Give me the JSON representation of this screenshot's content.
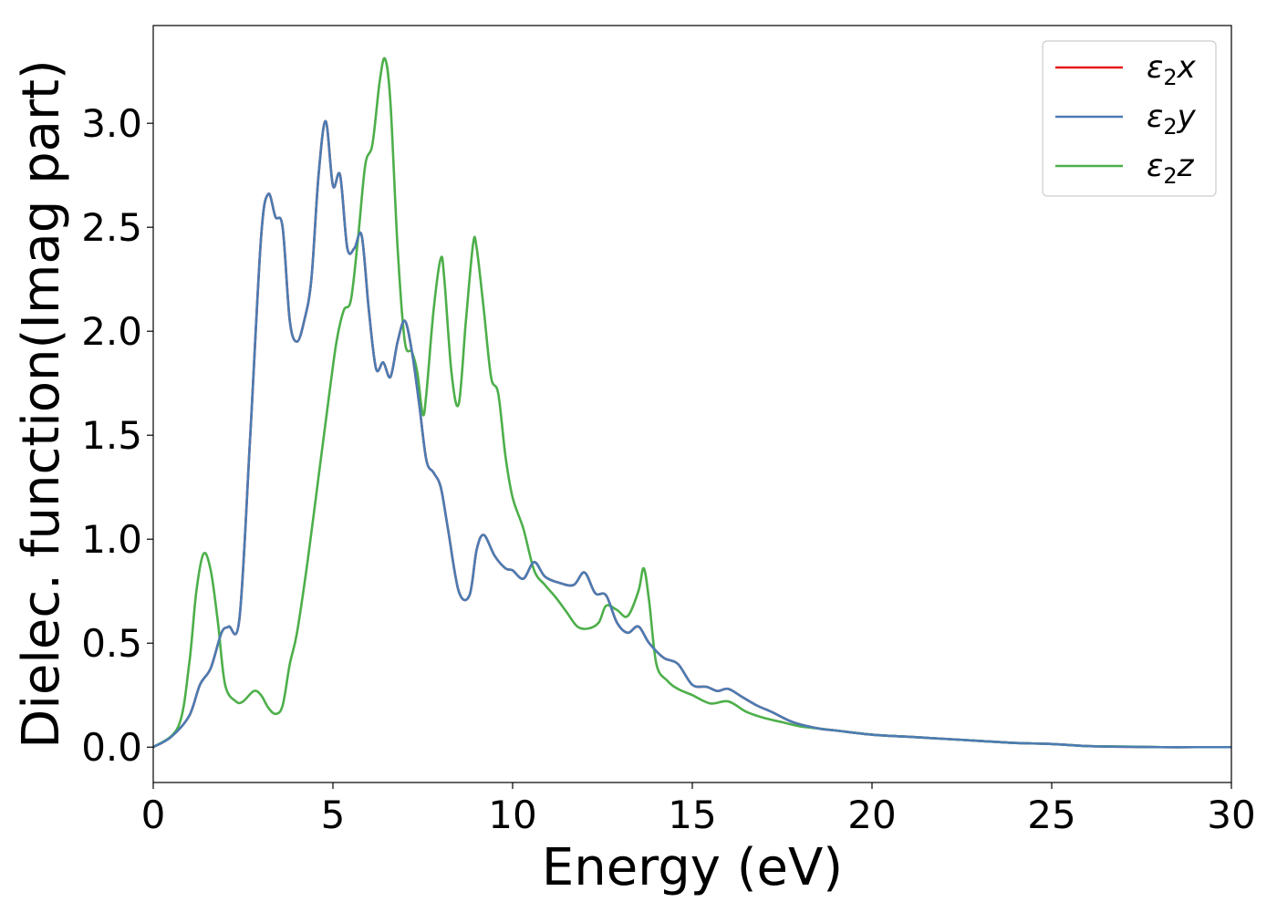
{
  "chart_data": {
    "type": "line",
    "xlabel": "Energy (eV)",
    "ylabel": "Dielec. function(Imag part)",
    "xlim": [
      0,
      30
    ],
    "ylim": [
      -0.17,
      3.47
    ],
    "xticks": [
      0,
      5,
      10,
      15,
      20,
      25,
      30
    ],
    "yticks": [
      0.0,
      0.5,
      1.0,
      1.5,
      2.0,
      2.5,
      3.0
    ],
    "xtick_labels": [
      "0",
      "5",
      "10",
      "15",
      "20",
      "25",
      "30"
    ],
    "ytick_labels": [
      "0.0",
      "0.5",
      "1.0",
      "1.5",
      "2.0",
      "2.5",
      "3.0"
    ],
    "grid": false,
    "legend_position": "top-right",
    "series": [
      {
        "name": "ε₂x",
        "legend_base": "ε",
        "legend_sub": "2",
        "legend_tail": "x",
        "color": "#e41a1c",
        "x": [
          0,
          0.5,
          1.0,
          1.3,
          1.6,
          1.9,
          2.1,
          2.4,
          2.7,
          3.0,
          3.2,
          3.4,
          3.6,
          3.8,
          4.0,
          4.2,
          4.4,
          4.6,
          4.8,
          5.0,
          5.2,
          5.4,
          5.6,
          5.8,
          6.0,
          6.2,
          6.4,
          6.6,
          6.8,
          7.0,
          7.2,
          7.4,
          7.6,
          7.8,
          8.0,
          8.2,
          8.5,
          8.8,
          9.0,
          9.2,
          9.5,
          9.8,
          10.0,
          10.3,
          10.6,
          10.9,
          11.3,
          11.7,
          12.0,
          12.3,
          12.6,
          12.9,
          13.2,
          13.5,
          13.8,
          14.2,
          14.6,
          15.0,
          15.4,
          15.7,
          16.0,
          16.4,
          16.8,
          17.2,
          17.8,
          18.5,
          19.0,
          20.0,
          21.0,
          22.0,
          23.0,
          24.0,
          25.0,
          26.0,
          26.5,
          27.0,
          28.0,
          29.0,
          30.0
        ],
        "y": [
          0.0,
          0.05,
          0.15,
          0.3,
          0.38,
          0.55,
          0.58,
          0.62,
          1.5,
          2.45,
          2.66,
          2.55,
          2.5,
          2.05,
          1.95,
          2.05,
          2.25,
          2.75,
          3.01,
          2.7,
          2.75,
          2.4,
          2.4,
          2.46,
          2.1,
          1.82,
          1.85,
          1.78,
          1.95,
          2.05,
          1.9,
          1.65,
          1.38,
          1.32,
          1.25,
          1.05,
          0.75,
          0.73,
          0.95,
          1.02,
          0.92,
          0.86,
          0.85,
          0.81,
          0.89,
          0.82,
          0.79,
          0.78,
          0.84,
          0.74,
          0.73,
          0.6,
          0.55,
          0.58,
          0.5,
          0.43,
          0.4,
          0.3,
          0.29,
          0.27,
          0.28,
          0.24,
          0.2,
          0.17,
          0.12,
          0.09,
          0.08,
          0.06,
          0.05,
          0.04,
          0.03,
          0.02,
          0.015,
          0.005,
          0.003,
          0.002,
          0.0,
          0.0,
          0.0
        ]
      },
      {
        "name": "ε₂y",
        "legend_base": "ε",
        "legend_sub": "2",
        "legend_tail": "y",
        "color": "#4a7cb3",
        "x": [
          0,
          0.5,
          1.0,
          1.3,
          1.6,
          1.9,
          2.1,
          2.4,
          2.7,
          3.0,
          3.2,
          3.4,
          3.6,
          3.8,
          4.0,
          4.2,
          4.4,
          4.6,
          4.8,
          5.0,
          5.2,
          5.4,
          5.6,
          5.8,
          6.0,
          6.2,
          6.4,
          6.6,
          6.8,
          7.0,
          7.2,
          7.4,
          7.6,
          7.8,
          8.0,
          8.2,
          8.5,
          8.8,
          9.0,
          9.2,
          9.5,
          9.8,
          10.0,
          10.3,
          10.6,
          10.9,
          11.3,
          11.7,
          12.0,
          12.3,
          12.6,
          12.9,
          13.2,
          13.5,
          13.8,
          14.2,
          14.6,
          15.0,
          15.4,
          15.7,
          16.0,
          16.4,
          16.8,
          17.2,
          17.8,
          18.5,
          19.0,
          20.0,
          21.0,
          22.0,
          23.0,
          24.0,
          25.0,
          26.0,
          26.5,
          27.0,
          28.0,
          29.0,
          30.0
        ],
        "y": [
          0.0,
          0.05,
          0.15,
          0.3,
          0.38,
          0.55,
          0.58,
          0.62,
          1.5,
          2.45,
          2.66,
          2.55,
          2.5,
          2.05,
          1.95,
          2.05,
          2.25,
          2.75,
          3.01,
          2.7,
          2.75,
          2.4,
          2.4,
          2.46,
          2.1,
          1.82,
          1.85,
          1.78,
          1.95,
          2.05,
          1.9,
          1.65,
          1.38,
          1.32,
          1.25,
          1.05,
          0.75,
          0.73,
          0.95,
          1.02,
          0.92,
          0.86,
          0.85,
          0.81,
          0.89,
          0.82,
          0.79,
          0.78,
          0.84,
          0.74,
          0.73,
          0.6,
          0.55,
          0.58,
          0.5,
          0.43,
          0.4,
          0.3,
          0.29,
          0.27,
          0.28,
          0.24,
          0.2,
          0.17,
          0.12,
          0.09,
          0.08,
          0.06,
          0.05,
          0.04,
          0.03,
          0.02,
          0.015,
          0.005,
          0.003,
          0.002,
          0.0,
          0.0,
          0.0
        ]
      },
      {
        "name": "ε₂z",
        "legend_base": "ε",
        "legend_sub": "2",
        "legend_tail": "z",
        "color": "#4daf4a",
        "x": [
          0,
          0.7,
          1.0,
          1.2,
          1.4,
          1.6,
          1.8,
          2.0,
          2.3,
          2.5,
          2.8,
          3.0,
          3.2,
          3.4,
          3.6,
          3.8,
          4.0,
          4.3,
          4.6,
          4.9,
          5.1,
          5.3,
          5.5,
          5.7,
          5.9,
          6.1,
          6.3,
          6.45,
          6.6,
          6.8,
          7.0,
          7.2,
          7.35,
          7.5,
          7.6,
          7.8,
          8.0,
          8.1,
          8.3,
          8.5,
          8.7,
          8.9,
          9.0,
          9.2,
          9.4,
          9.6,
          9.8,
          10.0,
          10.3,
          10.6,
          10.9,
          11.2,
          11.5,
          11.8,
          12.1,
          12.4,
          12.6,
          12.9,
          13.2,
          13.5,
          13.65,
          13.8,
          14.0,
          14.3,
          14.6,
          15.0,
          15.5,
          16.0,
          16.5,
          17.0,
          17.5,
          18.0,
          18.5,
          19.0,
          20.0,
          21.0,
          22.0,
          23.0,
          24.0,
          25.0,
          26.0,
          27.0,
          28.0,
          29.0,
          30.0
        ],
        "y": [
          0.0,
          0.1,
          0.4,
          0.75,
          0.93,
          0.85,
          0.6,
          0.3,
          0.22,
          0.22,
          0.27,
          0.25,
          0.19,
          0.16,
          0.2,
          0.4,
          0.55,
          0.9,
          1.3,
          1.7,
          1.95,
          2.1,
          2.15,
          2.45,
          2.8,
          2.9,
          3.2,
          3.31,
          3.1,
          2.4,
          1.95,
          1.9,
          1.8,
          1.6,
          1.7,
          2.1,
          2.35,
          2.25,
          1.8,
          1.65,
          2.05,
          2.42,
          2.4,
          2.1,
          1.78,
          1.7,
          1.4,
          1.2,
          1.05,
          0.85,
          0.78,
          0.72,
          0.65,
          0.58,
          0.57,
          0.6,
          0.68,
          0.66,
          0.63,
          0.75,
          0.86,
          0.7,
          0.4,
          0.32,
          0.28,
          0.25,
          0.21,
          0.22,
          0.17,
          0.14,
          0.12,
          0.1,
          0.09,
          0.08,
          0.06,
          0.05,
          0.04,
          0.03,
          0.02,
          0.015,
          0.005,
          0.003,
          0.0,
          0.0,
          0.0
        ]
      }
    ]
  }
}
